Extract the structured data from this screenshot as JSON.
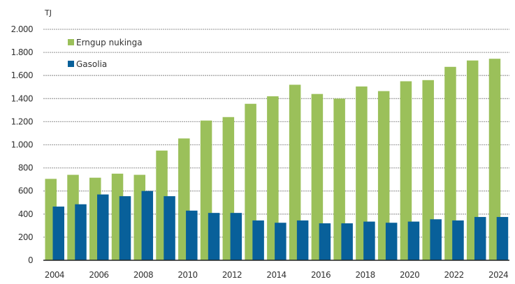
{
  "chart_data": {
    "type": "bar",
    "title": "",
    "ylabel": "TJ",
    "xlabel": "",
    "ylim": [
      0,
      2000
    ],
    "yticks": [
      0,
      200,
      400,
      600,
      800,
      1000,
      1200,
      1400,
      1600,
      1800,
      2000
    ],
    "ytick_labels": [
      "0",
      "200",
      "400",
      "600",
      "800",
      "1.000",
      "1.200",
      "1.400",
      "1.600",
      "1.800",
      "2.000"
    ],
    "grid": true,
    "legend_position": "top-left",
    "categories": [
      "2004",
      "2005",
      "2006",
      "2007",
      "2008",
      "2009",
      "2010",
      "2011",
      "2012",
      "2013",
      "2014",
      "2015",
      "2016",
      "2017",
      "2018",
      "2019",
      "2020",
      "2021",
      "2022",
      "2023",
      "2024"
    ],
    "xtick_labels": [
      "2004",
      "2006",
      "2008",
      "2010",
      "2012",
      "2014",
      "2016",
      "2018",
      "2020",
      "2022",
      "2024"
    ],
    "series": [
      {
        "name": "Erngup nukinga",
        "color": "#9BC05A",
        "values": [
          705,
          740,
          715,
          750,
          740,
          950,
          1055,
          1210,
          1240,
          1355,
          1420,
          1520,
          1440,
          1400,
          1505,
          1465,
          1550,
          1560,
          1675,
          1730,
          1745
        ]
      },
      {
        "name": "Gasolia",
        "color": "#08609A",
        "values": [
          465,
          485,
          570,
          555,
          600,
          555,
          430,
          410,
          410,
          345,
          325,
          345,
          320,
          320,
          335,
          325,
          335,
          355,
          345,
          375,
          375
        ]
      }
    ]
  }
}
